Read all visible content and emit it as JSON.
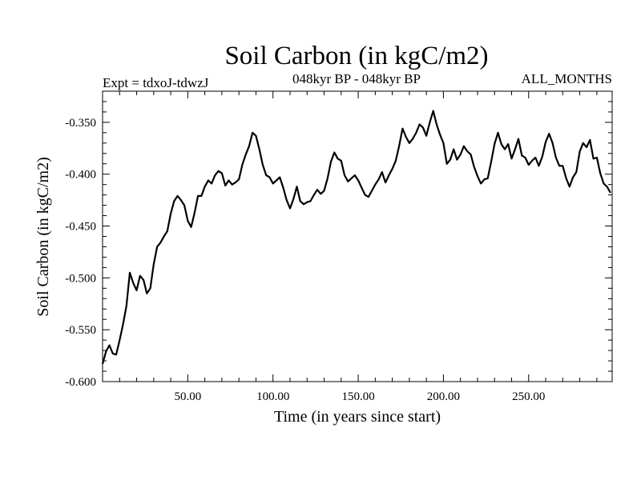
{
  "chart_data": {
    "type": "line",
    "title": "Soil Carbon (in kgC/m2)",
    "subtitle": "048kyr BP - 048kyr BP",
    "expt_label": "Expt = tdxoJ-tdwzJ",
    "months_label": "ALL_MONTHS",
    "xlabel": "Time (in years since start)",
    "ylabel": "Soil Carbon (in kgC/m2)",
    "xlim": [
      0,
      299
    ],
    "ylim": [
      -0.6,
      -0.32
    ],
    "xticks": [
      50,
      100,
      150,
      200,
      250
    ],
    "xtick_labels": [
      "50.00",
      "100.00",
      "150.00",
      "200.00",
      "250.00"
    ],
    "yticks": [
      -0.6,
      -0.55,
      -0.5,
      -0.45,
      -0.4,
      -0.35
    ],
    "ytick_labels": [
      "-0.600",
      "-0.550",
      "-0.500",
      "-0.450",
      "-0.400",
      "-0.350"
    ],
    "grid": false,
    "line_color": "#000000",
    "series": [
      {
        "x": [
          0,
          2,
          4,
          6,
          8,
          10,
          12,
          14,
          16,
          18,
          20,
          22,
          24,
          26,
          28,
          30,
          32,
          34,
          36,
          38,
          40,
          42,
          44,
          46,
          48,
          50,
          52,
          54,
          56,
          58,
          60,
          62,
          64,
          66,
          68,
          70,
          72,
          74,
          76,
          78,
          80,
          82,
          84,
          86,
          88,
          90,
          92,
          94,
          96,
          98,
          100,
          102,
          104,
          106,
          108,
          110,
          112,
          114,
          116,
          118,
          120,
          122,
          124,
          126,
          128,
          130,
          132,
          134,
          136,
          138,
          140,
          142,
          144,
          146,
          148,
          150,
          152,
          154,
          156,
          158,
          160,
          162,
          164,
          166,
          168,
          170,
          172,
          174,
          176,
          178,
          180,
          182,
          184,
          186,
          188,
          190,
          192,
          194,
          196,
          198,
          200,
          202,
          204,
          206,
          208,
          210,
          212,
          214,
          216,
          218,
          220,
          222,
          224,
          226,
          228,
          230,
          232,
          234,
          236,
          238,
          240,
          242,
          244,
          246,
          248,
          250,
          252,
          254,
          256,
          258,
          260,
          262,
          264,
          266,
          268,
          270,
          272,
          274,
          276,
          278,
          280,
          282,
          284,
          286,
          288,
          290,
          292,
          294,
          296,
          298
        ],
        "values": [
          -0.583,
          -0.571,
          -0.565,
          -0.573,
          -0.574,
          -0.56,
          -0.545,
          -0.527,
          -0.495,
          -0.505,
          -0.512,
          -0.498,
          -0.502,
          -0.515,
          -0.51,
          -0.487,
          -0.47,
          -0.466,
          -0.46,
          -0.455,
          -0.438,
          -0.426,
          -0.421,
          -0.425,
          -0.43,
          -0.445,
          -0.451,
          -0.437,
          -0.421,
          -0.421,
          -0.412,
          -0.406,
          -0.409,
          -0.401,
          -0.397,
          -0.399,
          -0.411,
          -0.406,
          -0.41,
          -0.408,
          -0.405,
          -0.391,
          -0.381,
          -0.373,
          -0.36,
          -0.363,
          -0.376,
          -0.391,
          -0.401,
          -0.403,
          -0.409,
          -0.406,
          -0.403,
          -0.413,
          -0.425,
          -0.433,
          -0.424,
          -0.412,
          -0.426,
          -0.429,
          -0.427,
          -0.426,
          -0.42,
          -0.415,
          -0.419,
          -0.416,
          -0.404,
          -0.388,
          -0.379,
          -0.385,
          -0.387,
          -0.401,
          -0.407,
          -0.404,
          -0.401,
          -0.406,
          -0.413,
          -0.42,
          -0.422,
          -0.416,
          -0.41,
          -0.405,
          -0.398,
          -0.408,
          -0.401,
          -0.395,
          -0.387,
          -0.373,
          -0.356,
          -0.364,
          -0.37,
          -0.366,
          -0.36,
          -0.352,
          -0.355,
          -0.363,
          -0.35,
          -0.339,
          -0.352,
          -0.362,
          -0.37,
          -0.39,
          -0.386,
          -0.376,
          -0.386,
          -0.381,
          -0.373,
          -0.378,
          -0.381,
          -0.393,
          -0.402,
          -0.409,
          -0.405,
          -0.404,
          -0.388,
          -0.371,
          -0.36,
          -0.371,
          -0.376,
          -0.371,
          -0.385,
          -0.376,
          -0.366,
          -0.382,
          -0.384,
          -0.391,
          -0.387,
          -0.384,
          -0.392,
          -0.383,
          -0.369,
          -0.361,
          -0.37,
          -0.384,
          -0.392,
          -0.392,
          -0.404,
          -0.412,
          -0.403,
          -0.398,
          -0.378,
          -0.37,
          -0.374,
          -0.367,
          -0.385,
          -0.384,
          -0.399,
          -0.409,
          -0.412,
          -0.418
        ]
      }
    ]
  }
}
